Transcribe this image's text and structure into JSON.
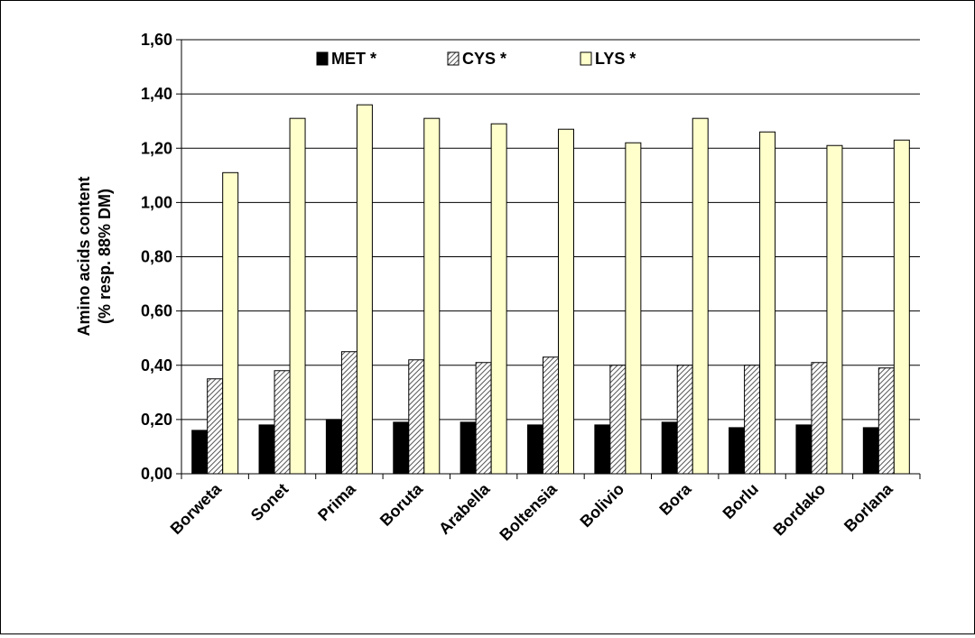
{
  "chart_data": {
    "type": "bar",
    "title": "",
    "xlabel": "",
    "ylabel": "Amino acids content",
    "ylabel2": "(% resp. 88% DM)",
    "ylim": [
      0,
      1.6
    ],
    "ytick_step": 0.2,
    "yticks": [
      "0,00",
      "0,20",
      "0,40",
      "0,60",
      "0,80",
      "1,00",
      "1,20",
      "1,40",
      "1,60"
    ],
    "categories": [
      "Borweta",
      "Sonet",
      "Prima",
      "Boruta",
      "Arabella",
      "Boltensia",
      "Bolivio",
      "Bora",
      "Borlu",
      "Bordako",
      "Borlana"
    ],
    "series": [
      {
        "name": "MET *",
        "color": "#000000",
        "pattern": "solid",
        "values": [
          0.16,
          0.18,
          0.2,
          0.19,
          0.19,
          0.18,
          0.18,
          0.19,
          0.17,
          0.18,
          0.17
        ]
      },
      {
        "name": "CYS *",
        "color": "#c8c8c8",
        "pattern": "diagonal-hatch",
        "values": [
          0.35,
          0.38,
          0.45,
          0.42,
          0.41,
          0.43,
          0.4,
          0.4,
          0.4,
          0.41,
          0.39
        ]
      },
      {
        "name": "LYS *",
        "color": "#ffffcc",
        "pattern": "solid",
        "values": [
          1.11,
          1.31,
          1.36,
          1.31,
          1.29,
          1.27,
          1.22,
          1.31,
          1.26,
          1.21,
          1.23
        ]
      }
    ],
    "grid": true,
    "legend_position": "top-center"
  }
}
